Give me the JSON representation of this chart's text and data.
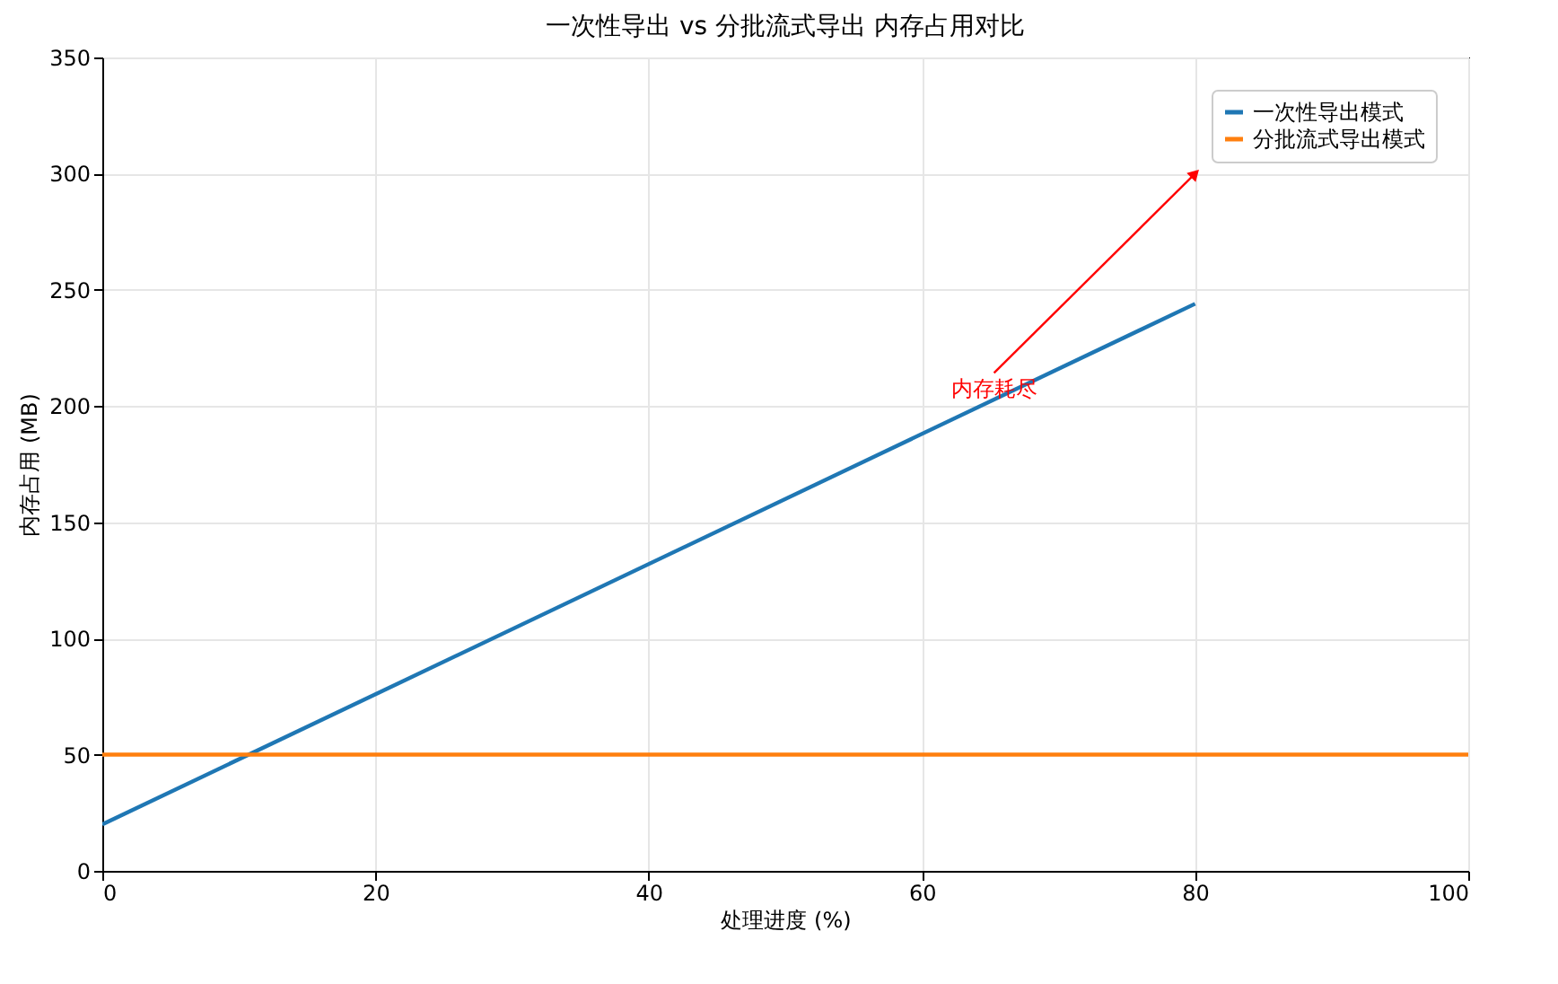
{
  "chart_data": {
    "type": "line",
    "title": "一次性导出 vs 分批流式导出 内存占用对比",
    "xlabel": "处理进度 (%)",
    "ylabel": "内存占用 (MB)",
    "series": [
      {
        "name": "一次性导出模式",
        "color": "#1f77b4",
        "x": [
          0,
          80
        ],
        "values": [
          20,
          244
        ]
      },
      {
        "name": "分批流式导出模式",
        "color": "#ff7f0e",
        "x": [
          0,
          100
        ],
        "values": [
          50,
          50
        ]
      }
    ],
    "annotations": [
      {
        "text": "内存耗尽",
        "x": 80,
        "y": 300
      }
    ],
    "xlim": [
      0,
      100
    ],
    "xticks": [
      0,
      20,
      40,
      60,
      80,
      100
    ],
    "ylim": [
      0,
      350
    ],
    "yticks": [
      0,
      50,
      100,
      150,
      200,
      250,
      300,
      350
    ],
    "grid": true,
    "legend": "top right",
    "marker": "none",
    "line_style": "solid"
  }
}
